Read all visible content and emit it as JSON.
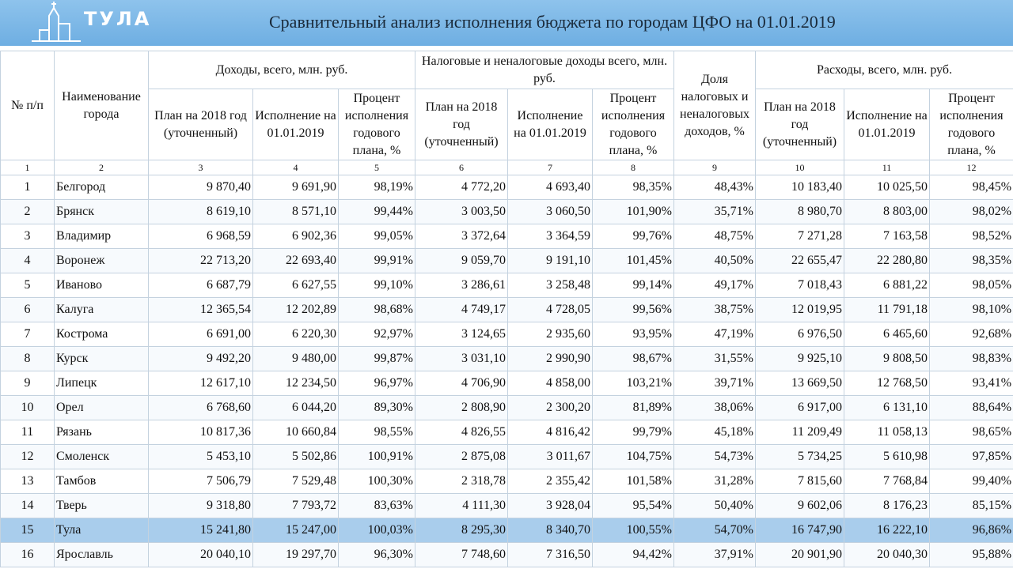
{
  "header": {
    "logo": "ТУЛА",
    "title": "Сравнительный анализ исполнения бюджета по городам ЦФО на 01.01.2019"
  },
  "table": {
    "head": {
      "number": "№ п/п",
      "city": "Наименование города",
      "groups": [
        "Доходы, всего, млн. руб.",
        "Налоговые и неналоговые доходы всего, млн. руб.",
        "Расходы, всего, млн. руб."
      ],
      "share": "Доля налоговых и неналоговых доходов, %",
      "sub": [
        "План на 2018 год (уточненный)",
        "Исполнение на 01.01.2019",
        "Процент исполнения годового плана, %"
      ]
    },
    "column_numbers": [
      "1",
      "2",
      "3",
      "4",
      "5",
      "6",
      "7",
      "8",
      "9",
      "10",
      "11",
      "12"
    ],
    "rows": [
      [
        "1",
        "Белгород",
        "9 870,40",
        "9 691,90",
        "98,19%",
        "4 772,20",
        "4 693,40",
        "98,35%",
        "48,43%",
        "10 183,40",
        "10 025,50",
        "98,45%"
      ],
      [
        "2",
        "Брянск",
        "8 619,10",
        "8 571,10",
        "99,44%",
        "3 003,50",
        "3 060,50",
        "101,90%",
        "35,71%",
        "8 980,70",
        "8 803,00",
        "98,02%"
      ],
      [
        "3",
        "Владимир",
        "6 968,59",
        "6 902,36",
        "99,05%",
        "3 372,64",
        "3 364,59",
        "99,76%",
        "48,75%",
        "7 271,28",
        "7 163,58",
        "98,52%"
      ],
      [
        "4",
        "Воронеж",
        "22 713,20",
        "22 693,40",
        "99,91%",
        "9 059,70",
        "9 191,10",
        "101,45%",
        "40,50%",
        "22 655,47",
        "22 280,80",
        "98,35%"
      ],
      [
        "5",
        "Иваново",
        "6 687,79",
        "6 627,55",
        "99,10%",
        "3 286,61",
        "3 258,48",
        "99,14%",
        "49,17%",
        "7 018,43",
        "6 881,22",
        "98,05%"
      ],
      [
        "6",
        "Калуга",
        "12 365,54",
        "12 202,89",
        "98,68%",
        "4 749,17",
        "4 728,05",
        "99,56%",
        "38,75%",
        "12 019,95",
        "11 791,18",
        "98,10%"
      ],
      [
        "7",
        "Кострома",
        "6 691,00",
        "6 220,30",
        "92,97%",
        "3 124,65",
        "2 935,60",
        "93,95%",
        "47,19%",
        "6 976,50",
        "6 465,60",
        "92,68%"
      ],
      [
        "8",
        "Курск",
        "9 492,20",
        "9 480,00",
        "99,87%",
        "3 031,10",
        "2 990,90",
        "98,67%",
        "31,55%",
        "9 925,10",
        "9 808,50",
        "98,83%"
      ],
      [
        "9",
        "Липецк",
        "12 617,10",
        "12 234,50",
        "96,97%",
        "4 706,90",
        "4 858,00",
        "103,21%",
        "39,71%",
        "13 669,50",
        "12 768,50",
        "93,41%"
      ],
      [
        "10",
        "Орел",
        "6 768,60",
        "6 044,20",
        "89,30%",
        "2 808,90",
        "2 300,20",
        "81,89%",
        "38,06%",
        "6 917,00",
        "6 131,10",
        "88,64%"
      ],
      [
        "11",
        "Рязань",
        "10 817,36",
        "10 660,84",
        "98,55%",
        "4 826,55",
        "4 816,42",
        "99,79%",
        "45,18%",
        "11 209,49",
        "11 058,13",
        "98,65%"
      ],
      [
        "12",
        "Смоленск",
        "5 453,10",
        "5 502,86",
        "100,91%",
        "2 875,08",
        "3 011,67",
        "104,75%",
        "54,73%",
        "5 734,25",
        "5 610,98",
        "97,85%"
      ],
      [
        "13",
        "Тамбов",
        "7 506,79",
        "7 529,48",
        "100,30%",
        "2 318,78",
        "2 355,42",
        "101,58%",
        "31,28%",
        "7 815,60",
        "7 768,84",
        "99,40%"
      ],
      [
        "14",
        "Тверь",
        "9 318,80",
        "7 793,72",
        "83,63%",
        "4 111,30",
        "3 928,04",
        "95,54%",
        "50,40%",
        "9 602,06",
        "8 176,23",
        "85,15%"
      ],
      [
        "15",
        "Тула",
        "15 241,80",
        "15 247,00",
        "100,03%",
        "8 295,30",
        "8 340,70",
        "100,55%",
        "54,70%",
        "16 747,90",
        "16 222,10",
        "96,86%"
      ],
      [
        "16",
        "Ярославль",
        "20 040,10",
        "19 297,70",
        "96,30%",
        "7 748,60",
        "7 316,50",
        "94,42%",
        "37,91%",
        "20 901,90",
        "20 040,30",
        "95,88%"
      ]
    ]
  }
}
